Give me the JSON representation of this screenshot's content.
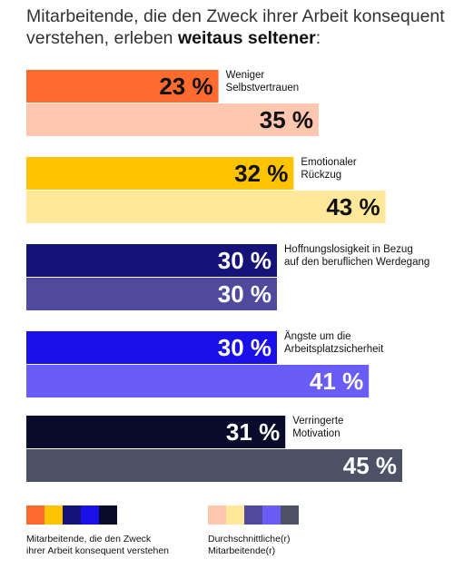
{
  "title": {
    "prefix": "Mitarbeitende, die den Zweck ihrer Arbeit konsequent verstehen, erleben ",
    "emphasis": "weitaus seltener",
    "suffix": ":"
  },
  "legend": {
    "purposeful": "Mitarbeitende, die den Zweck ihrer Arbeit konsequent verstehen",
    "average": "Durchschnittliche(r) Mitarbeitende(r)"
  },
  "chart_data": {
    "type": "bar",
    "orientation": "horizontal",
    "categories": [
      "Weniger Selbstvertrauen",
      "Emotionaler Rückzug",
      "Hoffnungslosigkeit in Bezug auf den beruflichen Werdegang",
      "Ängste um die Arbeitsplatzsicherheit",
      "Verringerte Motivation"
    ],
    "category_lines": [
      [
        "Weniger",
        "Selbstvertrauen"
      ],
      [
        "Emotionaler",
        "Rückzug"
      ],
      [
        "Hoffnungslosigkeit in Bezug",
        "auf den beruflichen Werdegang"
      ],
      [
        "Ängste um die",
        "Arbeitsplatzsicherheit"
      ],
      [
        "Verringerte",
        "Motivation"
      ]
    ],
    "series": [
      {
        "name": "Mitarbeitende, die den Zweck ihrer Arbeit konsequent verstehen",
        "values": [
          23,
          32,
          30,
          30,
          31
        ],
        "labels": [
          "23 %",
          "32 %",
          "30 %",
          "30 %",
          "31 %"
        ],
        "colors": [
          "#ff6b2e",
          "#ffc400",
          "#15127a",
          "#1a10ea",
          "#0a0a2a"
        ],
        "text_colors": [
          "#111111",
          "#111111",
          "#ffffff",
          "#ffffff",
          "#ffffff"
        ]
      },
      {
        "name": "Durchschnittliche(r) Mitarbeitende(r)",
        "values": [
          35,
          43,
          30,
          41,
          45
        ],
        "labels": [
          "35 %",
          "43 %",
          "30 %",
          "41 %",
          "45 %"
        ],
        "colors": [
          "#ffc6b0",
          "#ffe89a",
          "#4f4a9e",
          "#6a5cf7",
          "#4d5266"
        ],
        "text_colors": [
          "#111111",
          "#111111",
          "#ffffff",
          "#ffffff",
          "#ffffff"
        ]
      }
    ],
    "xlim": [
      0,
      52
    ],
    "grid": false,
    "legend_position": "bottom"
  }
}
